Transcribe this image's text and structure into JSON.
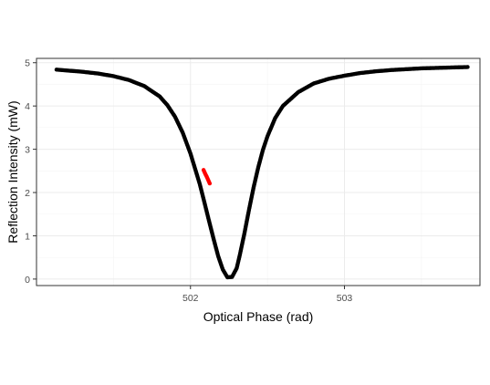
{
  "chart_data": {
    "type": "scatter",
    "xlabel": "Optical Phase (rad)",
    "ylabel": "Reflection Intensity (mW)",
    "xlim": [
      501.0,
      503.88
    ],
    "ylim": [
      -0.15,
      5.1
    ],
    "x_major_ticks": [
      502,
      503
    ],
    "x_minor_ticks": [
      501.5,
      502.5,
      503.5
    ],
    "y_major_ticks": [
      0,
      1,
      2,
      3,
      4,
      5
    ],
    "y_minor_ticks": [
      0.5,
      1.5,
      2.5,
      3.5,
      4.5
    ],
    "x_tick_labels": [
      "502",
      "503"
    ],
    "y_tick_labels": [
      "0",
      "1",
      "2",
      "3",
      "4",
      "5"
    ],
    "grid": true,
    "series": [
      {
        "color": "#000000",
        "x": [
          501.13,
          501.2,
          501.3,
          501.4,
          501.5,
          501.6,
          501.7,
          501.8,
          501.85,
          501.9,
          501.95,
          502.0,
          502.03,
          502.06,
          502.09,
          502.12,
          502.15,
          502.18,
          502.21,
          502.24,
          502.27,
          502.3,
          502.32,
          502.35,
          502.38,
          502.41,
          502.44,
          502.47,
          502.5,
          502.55,
          502.6,
          502.7,
          502.8,
          502.9,
          503.0,
          503.1,
          503.2,
          503.3,
          503.4,
          503.5,
          503.6,
          503.7,
          503.8
        ],
        "y": [
          4.84,
          4.82,
          4.79,
          4.75,
          4.69,
          4.6,
          4.46,
          4.22,
          4.02,
          3.75,
          3.38,
          2.9,
          2.55,
          2.2,
          1.78,
          1.35,
          0.93,
          0.53,
          0.22,
          0.04,
          0.05,
          0.25,
          0.55,
          1.05,
          1.6,
          2.12,
          2.58,
          2.98,
          3.3,
          3.72,
          4.0,
          4.32,
          4.52,
          4.63,
          4.7,
          4.76,
          4.8,
          4.83,
          4.85,
          4.87,
          4.88,
          4.89,
          4.9
        ]
      },
      {
        "color": "#ff0000",
        "x": [
          502.085,
          502.095,
          502.105,
          502.115,
          502.125
        ],
        "y": [
          2.52,
          2.44,
          2.37,
          2.29,
          2.21
        ]
      }
    ]
  }
}
